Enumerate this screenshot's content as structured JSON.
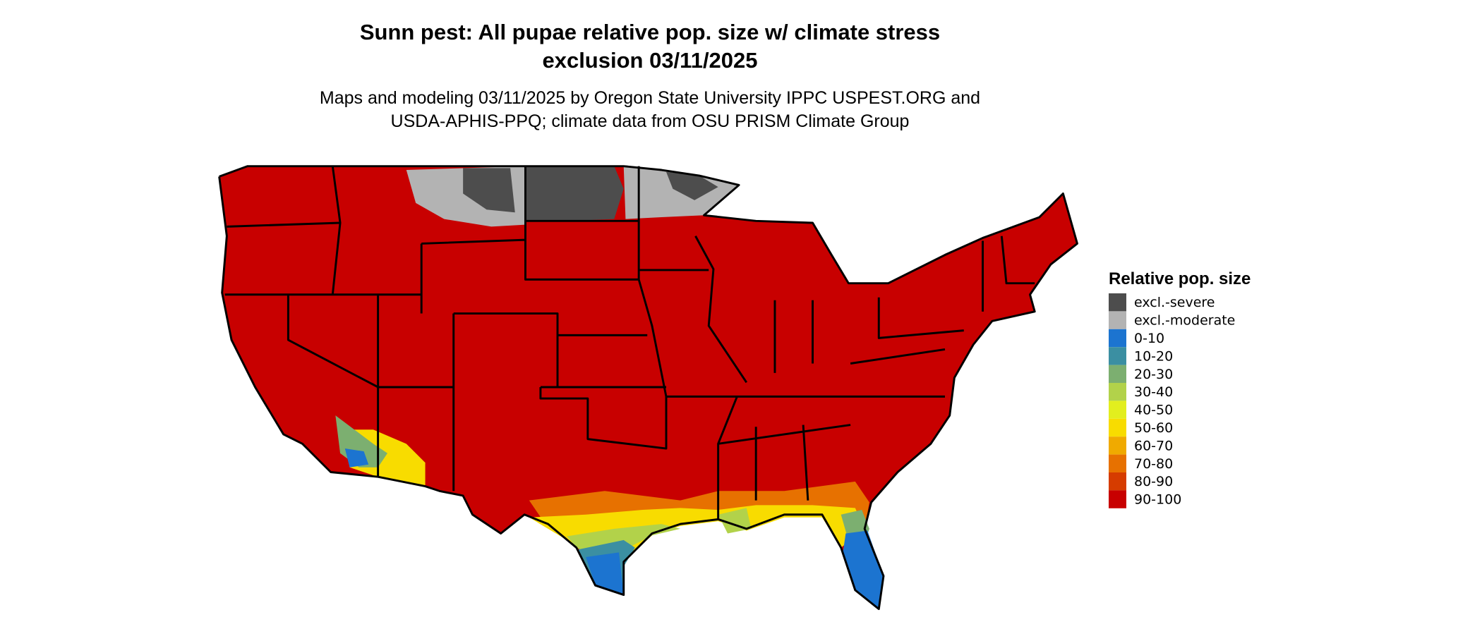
{
  "header": {
    "title_line1": "Sunn pest: All pupae relative pop. size w/ climate stress",
    "title_line2": "exclusion 03/11/2025",
    "subtitle_line1": "Maps and modeling 03/11/2025 by Oregon State University IPPC USPEST.ORG and",
    "subtitle_line2": "USDA-APHIS-PPQ; climate data from OSU PRISM Climate Group"
  },
  "legend": {
    "title": "Relative pop. size",
    "items": [
      {
        "label": "excl.-severe",
        "color": "#4d4d4d"
      },
      {
        "label": "excl.-moderate",
        "color": "#b3b3b3"
      },
      {
        "label": "0-10",
        "color": "#1c74d0"
      },
      {
        "label": "10-20",
        "color": "#3b8fa2"
      },
      {
        "label": "20-30",
        "color": "#7caf70"
      },
      {
        "label": "30-40",
        "color": "#b2d24a"
      },
      {
        "label": "40-50",
        "color": "#e2ee1e"
      },
      {
        "label": "50-60",
        "color": "#f8dc00"
      },
      {
        "label": "60-70",
        "color": "#f0aa00"
      },
      {
        "label": "70-80",
        "color": "#e77100"
      },
      {
        "label": "80-90",
        "color": "#d63c00"
      },
      {
        "label": "90-100",
        "color": "#c80000"
      }
    ]
  }
}
